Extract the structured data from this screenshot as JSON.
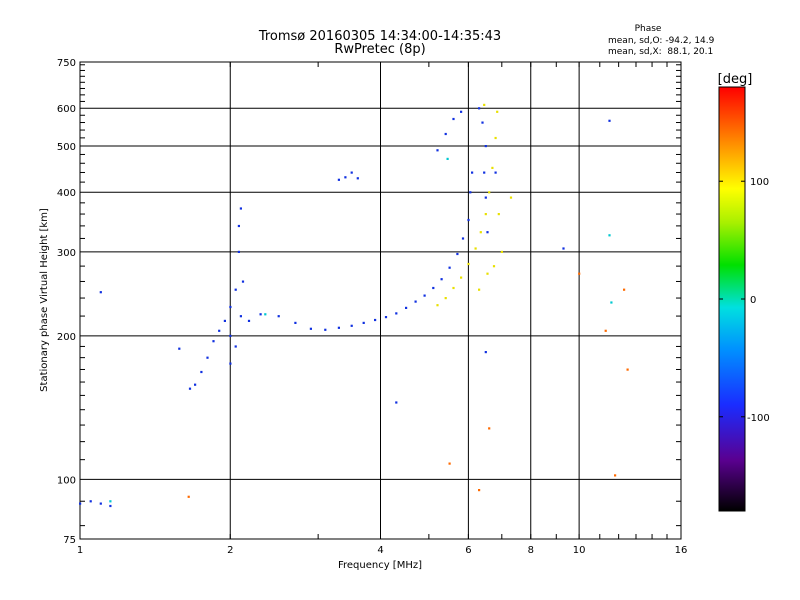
{
  "chart_data": {
    "type": "scatter",
    "title": "Tromsø 20160305 14:34:00-14:35:43",
    "subtitle": "RwPretec (8p)",
    "xlabel": "Frequency [MHz]",
    "ylabel": "Stationary phase Virtual Height [km]",
    "x_scale": "log",
    "y_scale": "log",
    "xlim": [
      1,
      16
    ],
    "ylim": [
      75,
      750
    ],
    "x_ticks": [
      1,
      2,
      4,
      6,
      8,
      10,
      16
    ],
    "y_ticks": [
      75,
      100,
      200,
      300,
      400,
      500,
      600,
      750
    ],
    "x_gridlines": [
      2,
      4,
      6,
      8,
      10
    ],
    "y_gridlines": [
      100,
      200,
      300,
      400,
      500,
      600
    ],
    "grid": true,
    "phase_box": {
      "title": "Phase",
      "line1": "mean, sd,O: -94.2, 14.9",
      "line2": "mean, sd,X:  88.1, 20.1"
    },
    "colorbar": {
      "label": "[deg]",
      "range": [
        -180,
        180
      ],
      "ticks": [
        100,
        0,
        -100
      ],
      "tick_labels": [
        "100",
        "0",
        "-100"
      ]
    },
    "series": [
      {
        "mode": "O",
        "phase_deg": -94,
        "color": "#1030e0",
        "points": [
          [
            1.0,
            89
          ],
          [
            1.05,
            90
          ],
          [
            1.1,
            89
          ],
          [
            1.15,
            88
          ],
          [
            1.58,
            188
          ],
          [
            1.66,
            155
          ],
          [
            1.7,
            158
          ],
          [
            1.75,
            168
          ],
          [
            1.8,
            180
          ],
          [
            1.85,
            195
          ],
          [
            1.9,
            205
          ],
          [
            1.95,
            215
          ],
          [
            2.0,
            175
          ],
          [
            2.0,
            200
          ],
          [
            2.0,
            230
          ],
          [
            2.05,
            190
          ],
          [
            2.05,
            250
          ],
          [
            2.08,
            300
          ],
          [
            2.08,
            340
          ],
          [
            2.1,
            370
          ],
          [
            2.1,
            220
          ],
          [
            2.12,
            260
          ],
          [
            2.18,
            215
          ],
          [
            2.3,
            222
          ],
          [
            2.5,
            220
          ],
          [
            2.7,
            213
          ],
          [
            2.9,
            207
          ],
          [
            3.1,
            206
          ],
          [
            3.3,
            208
          ],
          [
            3.5,
            210
          ],
          [
            3.7,
            213
          ],
          [
            3.9,
            216
          ],
          [
            4.1,
            219
          ],
          [
            4.3,
            223
          ],
          [
            4.5,
            229
          ],
          [
            4.7,
            236
          ],
          [
            4.9,
            243
          ],
          [
            5.1,
            252
          ],
          [
            5.3,
            263
          ],
          [
            5.5,
            278
          ],
          [
            5.7,
            297
          ],
          [
            5.85,
            320
          ],
          [
            6.0,
            350
          ],
          [
            6.05,
            400
          ],
          [
            6.1,
            440
          ],
          [
            5.2,
            490
          ],
          [
            5.4,
            530
          ],
          [
            5.6,
            570
          ],
          [
            5.8,
            590
          ],
          [
            6.3,
            600
          ],
          [
            6.4,
            560
          ],
          [
            6.5,
            500
          ],
          [
            6.45,
            440
          ],
          [
            6.5,
            390
          ],
          [
            6.55,
            330
          ],
          [
            3.3,
            425
          ],
          [
            3.4,
            430
          ],
          [
            3.5,
            440
          ],
          [
            3.6,
            428
          ],
          [
            1.1,
            247
          ],
          [
            11.5,
            565
          ],
          [
            6.8,
            440
          ],
          [
            9.3,
            305
          ],
          [
            6.5,
            185
          ],
          [
            4.3,
            145
          ]
        ]
      },
      {
        "mode": "X",
        "phase_deg": 88,
        "color": "#e8e000",
        "points": [
          [
            5.2,
            232
          ],
          [
            5.4,
            240
          ],
          [
            5.6,
            252
          ],
          [
            5.8,
            265
          ],
          [
            6.0,
            283
          ],
          [
            6.2,
            305
          ],
          [
            6.35,
            330
          ],
          [
            6.5,
            360
          ],
          [
            6.6,
            400
          ],
          [
            6.7,
            450
          ],
          [
            6.8,
            520
          ],
          [
            6.85,
            590
          ],
          [
            6.9,
            360
          ],
          [
            7.0,
            300
          ],
          [
            6.3,
            250
          ],
          [
            6.55,
            270
          ],
          [
            6.75,
            280
          ],
          [
            6.45,
            610
          ],
          [
            7.3,
            390
          ]
        ]
      },
      {
        "mode": "other",
        "phase_deg": 60,
        "color": "#ff6a00",
        "points": [
          [
            10.0,
            270
          ],
          [
            11.3,
            205
          ],
          [
            12.5,
            170
          ],
          [
            12.3,
            250
          ],
          [
            5.5,
            108
          ],
          [
            6.3,
            95
          ],
          [
            11.8,
            102
          ],
          [
            1.65,
            92
          ],
          [
            6.6,
            128
          ]
        ]
      },
      {
        "mode": "other",
        "phase_deg": -10,
        "color": "#00c8d0",
        "points": [
          [
            1.15,
            90
          ],
          [
            11.5,
            325
          ],
          [
            11.6,
            235
          ],
          [
            2.35,
            222
          ],
          [
            5.45,
            470
          ]
        ]
      }
    ]
  }
}
